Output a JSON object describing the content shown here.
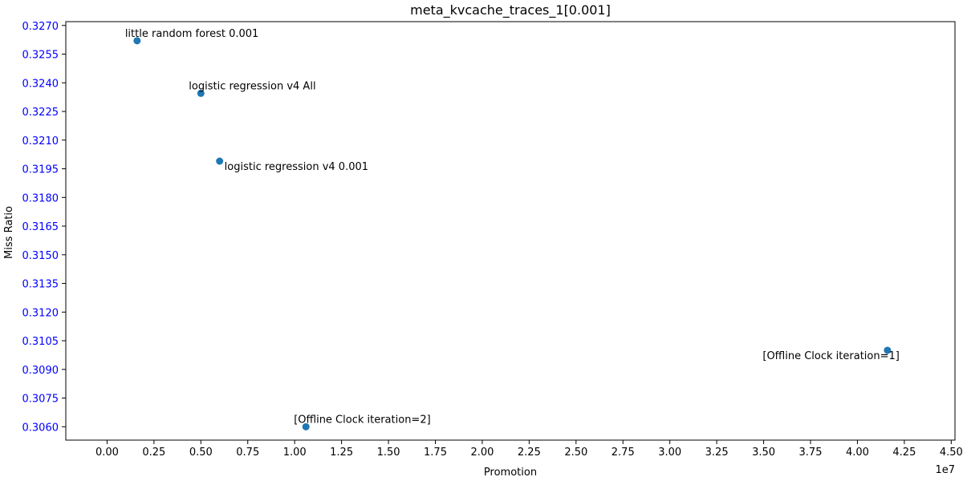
{
  "chart_data": {
    "type": "scatter",
    "title": "meta_kvcache_traces_1[0.001]",
    "xlabel": "Promotion",
    "ylabel": "Miss Ratio",
    "x_offset_label": "1e7",
    "xlim": [
      -0.22,
      4.52
    ],
    "ylim": [
      0.3053,
      0.3272
    ],
    "x_ticks": [
      0.0,
      0.25,
      0.5,
      0.75,
      1.0,
      1.25,
      1.5,
      1.75,
      2.0,
      2.25,
      2.5,
      2.75,
      3.0,
      3.25,
      3.5,
      3.75,
      4.0,
      4.25,
      4.5
    ],
    "x_tick_labels": [
      "0.00",
      "0.25",
      "0.50",
      "0.75",
      "1.00",
      "1.25",
      "1.50",
      "1.75",
      "2.00",
      "2.25",
      "2.50",
      "2.75",
      "3.00",
      "3.25",
      "3.50",
      "3.75",
      "4.00",
      "4.25",
      "4.50"
    ],
    "y_ticks": [
      0.306,
      0.3075,
      0.309,
      0.3105,
      0.312,
      0.3135,
      0.315,
      0.3165,
      0.318,
      0.3195,
      0.321,
      0.3225,
      0.324,
      0.3255,
      0.327
    ],
    "y_tick_labels": [
      "0.3060",
      "0.3075",
      "0.3090",
      "0.3105",
      "0.3120",
      "0.3135",
      "0.3150",
      "0.3165",
      "0.3180",
      "0.3195",
      "0.3210",
      "0.3225",
      "0.3240",
      "0.3255",
      "0.3270"
    ],
    "point_color": "#1f77b4",
    "y_tick_color": "#0000ff",
    "grid": false,
    "points": [
      {
        "x": 0.16,
        "y": 0.3262,
        "label": "little random forest 0.001",
        "label_pos": "above"
      },
      {
        "x": 0.5,
        "y": 0.32345,
        "label": "logistic regression v4 All",
        "label_pos": "above"
      },
      {
        "x": 0.6,
        "y": 0.3199,
        "label": "logistic regression v4 0.001",
        "label_pos": "below-right"
      },
      {
        "x": 4.16,
        "y": 0.31,
        "label": "[Offline Clock iteration=1]",
        "label_pos": "below-left"
      },
      {
        "x": 1.06,
        "y": 0.306,
        "label": "[Offline Clock iteration=2]",
        "label_pos": "above"
      }
    ]
  }
}
